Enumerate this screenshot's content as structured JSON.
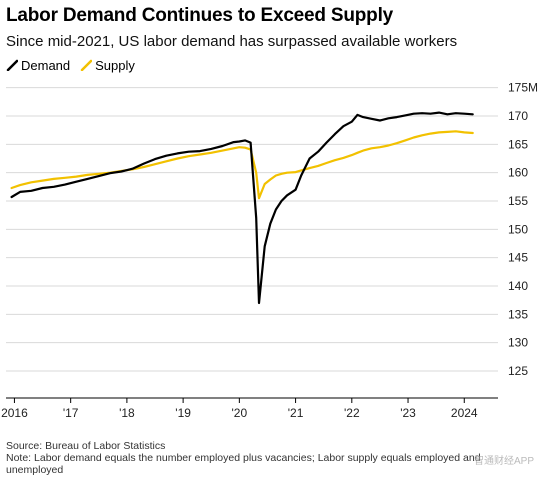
{
  "title": "Labor Demand Continues to Exceed Supply",
  "subtitle": "Since mid-2021, US labor demand has surpassed available workers",
  "legend": {
    "demand": "Demand",
    "supply": "Supply"
  },
  "colors": {
    "demand": "#000000",
    "supply": "#f2c100",
    "grid": "#d9d9d9"
  },
  "footer": {
    "source": "Source: Bureau of Labor Statistics",
    "note": "Note: Labor demand equals the number employed plus vacancies; Labor supply equals employed and unemployed"
  },
  "watermark": "智通财经APP",
  "chart_data": {
    "type": "line",
    "y_unit": "M",
    "ylim": [
      122,
      176
    ],
    "y_ticks": [
      125,
      130,
      135,
      140,
      145,
      150,
      155,
      160,
      165,
      170,
      175
    ],
    "y_tick_labels": [
      "125",
      "130",
      "135",
      "140",
      "145",
      "150",
      "155",
      "160",
      "165",
      "170",
      "175M"
    ],
    "x_ticks": [
      2016,
      2017,
      2018,
      2019,
      2020,
      2021,
      2022,
      2023,
      2024
    ],
    "x_tick_labels": [
      "2016",
      "'17",
      "'18",
      "'19",
      "'20",
      "'21",
      "'22",
      "'23",
      "2024"
    ],
    "xlim": [
      2015.85,
      2024.6
    ],
    "series": [
      {
        "name": "Demand",
        "x": [
          2015.95,
          2016.1,
          2016.3,
          2016.5,
          2016.7,
          2016.9,
          2017.1,
          2017.3,
          2017.5,
          2017.7,
          2017.9,
          2018.1,
          2018.3,
          2018.5,
          2018.7,
          2018.9,
          2019.1,
          2019.3,
          2019.5,
          2019.7,
          2019.9,
          2020.0,
          2020.1,
          2020.2,
          2020.3,
          2020.35,
          2020.45,
          2020.55,
          2020.65,
          2020.75,
          2020.85,
          2021.0,
          2021.1,
          2021.25,
          2021.4,
          2021.55,
          2021.7,
          2021.85,
          2022.0,
          2022.1,
          2022.2,
          2022.35,
          2022.5,
          2022.65,
          2022.8,
          2022.95,
          2023.1,
          2023.25,
          2023.4,
          2023.55,
          2023.7,
          2023.85,
          2024.0,
          2024.15
        ],
        "values": [
          155.7,
          156.6,
          156.8,
          157.3,
          157.5,
          157.9,
          158.4,
          158.9,
          159.4,
          159.9,
          160.2,
          160.7,
          161.6,
          162.4,
          163.0,
          163.4,
          163.7,
          163.8,
          164.2,
          164.7,
          165.4,
          165.5,
          165.7,
          165.3,
          152.0,
          137.0,
          147.0,
          151.0,
          153.5,
          155.0,
          156.0,
          157.0,
          159.5,
          162.5,
          163.7,
          165.3,
          166.8,
          168.2,
          169.0,
          170.2,
          169.8,
          169.5,
          169.2,
          169.6,
          169.8,
          170.1,
          170.4,
          170.5,
          170.4,
          170.6,
          170.3,
          170.5,
          170.4,
          170.3
        ]
      },
      {
        "name": "Supply",
        "x": [
          2015.95,
          2016.1,
          2016.3,
          2016.5,
          2016.7,
          2016.9,
          2017.1,
          2017.3,
          2017.5,
          2017.7,
          2017.9,
          2018.1,
          2018.3,
          2018.5,
          2018.7,
          2018.9,
          2019.1,
          2019.3,
          2019.5,
          2019.7,
          2019.9,
          2020.0,
          2020.1,
          2020.2,
          2020.3,
          2020.35,
          2020.45,
          2020.55,
          2020.65,
          2020.75,
          2020.85,
          2021.0,
          2021.1,
          2021.25,
          2021.4,
          2021.55,
          2021.7,
          2021.85,
          2022.0,
          2022.1,
          2022.2,
          2022.35,
          2022.5,
          2022.65,
          2022.8,
          2022.95,
          2023.1,
          2023.25,
          2023.4,
          2023.55,
          2023.7,
          2023.85,
          2024.0,
          2024.15
        ],
        "values": [
          157.3,
          157.8,
          158.3,
          158.6,
          158.9,
          159.1,
          159.3,
          159.6,
          159.8,
          160.0,
          160.3,
          160.6,
          161.0,
          161.5,
          162.0,
          162.5,
          162.9,
          163.2,
          163.5,
          163.9,
          164.3,
          164.5,
          164.4,
          164.1,
          160.0,
          155.5,
          158.0,
          158.8,
          159.5,
          159.8,
          160.0,
          160.1,
          160.4,
          160.8,
          161.2,
          161.7,
          162.2,
          162.6,
          163.1,
          163.5,
          163.9,
          164.3,
          164.5,
          164.8,
          165.2,
          165.7,
          166.2,
          166.6,
          166.9,
          167.1,
          167.2,
          167.3,
          167.1,
          167.0
        ]
      }
    ]
  }
}
